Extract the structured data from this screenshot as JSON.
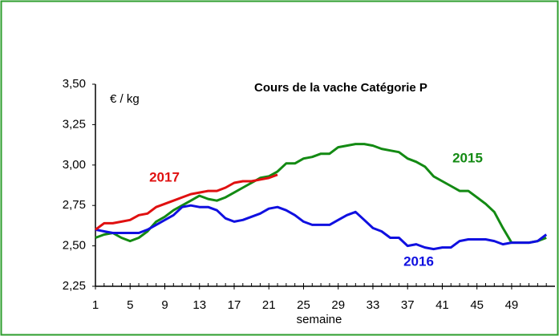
{
  "chart_data": {
    "type": "line",
    "title": "Cours de la vache Catégorie P",
    "y_label": "€ / kg",
    "x_label": "semaine",
    "x": [
      1,
      2,
      3,
      4,
      5,
      6,
      7,
      8,
      9,
      10,
      11,
      12,
      13,
      14,
      15,
      16,
      17,
      18,
      19,
      20,
      21,
      22,
      23,
      24,
      25,
      26,
      27,
      28,
      29,
      30,
      31,
      32,
      33,
      34,
      35,
      36,
      37,
      38,
      39,
      40,
      41,
      42,
      43,
      44,
      45,
      46,
      47,
      48,
      49,
      50,
      51,
      52,
      53
    ],
    "xlim": [
      1,
      54
    ],
    "xticks": [
      1,
      5,
      9,
      13,
      17,
      21,
      25,
      29,
      33,
      37,
      41,
      45,
      49
    ],
    "ylim": [
      2.25,
      3.5
    ],
    "yticks": [
      {
        "value": 2.25,
        "label": "2,25"
      },
      {
        "value": 2.5,
        "label": "2,50"
      },
      {
        "value": 2.75,
        "label": "2,75"
      },
      {
        "value": 3.0,
        "label": "3,00"
      },
      {
        "value": 3.25,
        "label": "3,25"
      },
      {
        "value": 3.5,
        "label": "3,50"
      }
    ],
    "grid": false,
    "series": [
      {
        "name": "2015",
        "color": "#138a13",
        "values": [
          2.55,
          2.57,
          2.58,
          2.55,
          2.53,
          2.55,
          2.59,
          2.65,
          2.68,
          2.72,
          2.75,
          2.78,
          2.81,
          2.79,
          2.78,
          2.8,
          2.83,
          2.86,
          2.89,
          2.92,
          2.93,
          2.96,
          3.01,
          3.01,
          3.04,
          3.05,
          3.07,
          3.07,
          3.11,
          3.12,
          3.13,
          3.13,
          3.12,
          3.1,
          3.09,
          3.08,
          3.04,
          3.02,
          2.99,
          2.93,
          2.9,
          2.87,
          2.84,
          2.84,
          2.8,
          2.76,
          2.71,
          2.61,
          2.52,
          2.52,
          2.52,
          2.53,
          2.55
        ]
      },
      {
        "name": "2016",
        "color": "#1010e0",
        "values": [
          2.6,
          2.59,
          2.58,
          2.58,
          2.58,
          2.58,
          2.6,
          2.63,
          2.66,
          2.69,
          2.74,
          2.75,
          2.74,
          2.74,
          2.72,
          2.67,
          2.65,
          2.66,
          2.68,
          2.7,
          2.73,
          2.74,
          2.72,
          2.69,
          2.65,
          2.63,
          2.63,
          2.63,
          2.66,
          2.69,
          2.71,
          2.66,
          2.61,
          2.59,
          2.55,
          2.55,
          2.5,
          2.51,
          2.49,
          2.48,
          2.49,
          2.49,
          2.53,
          2.54,
          2.54,
          2.54,
          2.53,
          2.51,
          2.52,
          2.52,
          2.52,
          2.53,
          2.57
        ]
      },
      {
        "name": "2017",
        "color": "#e01010",
        "values": [
          2.6,
          2.64,
          2.64,
          2.65,
          2.66,
          2.69,
          2.7,
          2.74,
          2.76,
          2.78,
          2.8,
          2.82,
          2.83,
          2.84,
          2.84,
          2.86,
          2.89,
          2.9,
          2.9,
          2.91,
          2.92,
          2.94,
          null,
          null,
          null,
          null,
          null,
          null,
          null,
          null,
          null,
          null,
          null,
          null,
          null,
          null,
          null,
          null,
          null,
          null,
          null,
          null,
          null,
          null,
          null,
          null,
          null,
          null,
          null,
          null,
          null,
          null,
          null
        ]
      }
    ]
  }
}
